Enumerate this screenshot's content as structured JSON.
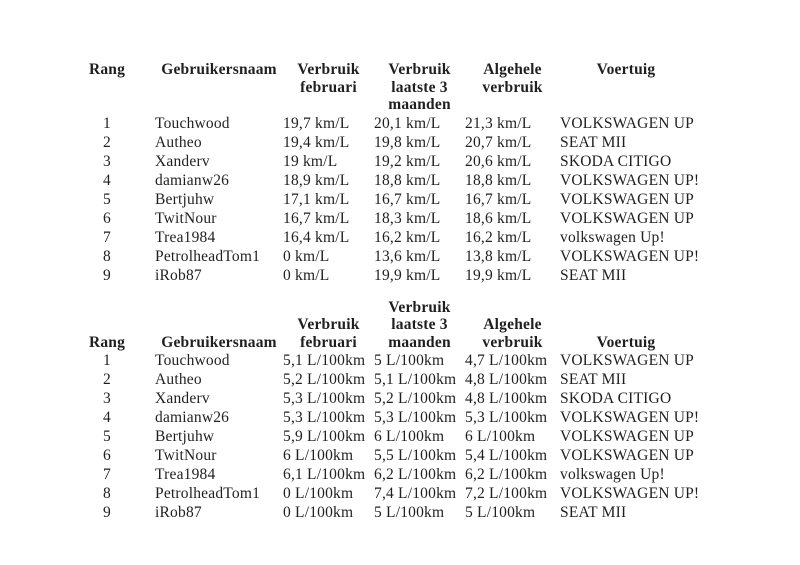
{
  "page": {
    "background_color": "#ffffff",
    "text_color": "#1f1f1f"
  },
  "tables": [
    {
      "name": "consumption-ranking-km-per-l",
      "headers": {
        "rank": "Rang",
        "username": "Gebruikersnaam",
        "february": "Verbruik\nfebruari",
        "last3": "Verbruik\nlaatste 3\nmaanden",
        "overall": "Algehele\nverbruik",
        "vehicle": "Voertuig"
      },
      "rows": [
        {
          "rank": "1",
          "username": "Touchwood",
          "february": "19,7 km/L",
          "last3": "20,1 km/L",
          "overall": "21,3 km/L",
          "vehicle": "VOLKSWAGEN UP"
        },
        {
          "rank": "2",
          "username": "Autheo",
          "february": "19,4 km/L",
          "last3": "19,8 km/L",
          "overall": "20,7 km/L",
          "vehicle": "SEAT MII"
        },
        {
          "rank": "3",
          "username": "Xanderv",
          "february": "19 km/L",
          "last3": "19,2 km/L",
          "overall": "20,6 km/L",
          "vehicle": "SKODA CITIGO"
        },
        {
          "rank": "4",
          "username": "damianw26",
          "february": "18,9 km/L",
          "last3": "18,8 km/L",
          "overall": "18,8 km/L",
          "vehicle": "VOLKSWAGEN UP!"
        },
        {
          "rank": "5",
          "username": "Bertjuhw",
          "february": "17,1 km/L",
          "last3": "16,7 km/L",
          "overall": "16,7 km/L",
          "vehicle": "VOLKSWAGEN UP"
        },
        {
          "rank": "6",
          "username": "TwitNour",
          "february": "16,7 km/L",
          "last3": "18,3 km/L",
          "overall": "18,6 km/L",
          "vehicle": "VOLKSWAGEN UP"
        },
        {
          "rank": "7",
          "username": "Trea1984",
          "february": "16,4 km/L",
          "last3": "16,2 km/L",
          "overall": "16,2 km/L",
          "vehicle": "volkswagen Up!"
        },
        {
          "rank": "8",
          "username": "PetrolheadTom1",
          "february": "0 km/L",
          "last3": "13,6 km/L",
          "overall": "13,8 km/L",
          "vehicle": "VOLKSWAGEN UP!"
        },
        {
          "rank": "9",
          "username": "iRob87",
          "february": "0 km/L",
          "last3": "19,9 km/L",
          "overall": "19,9 km/L",
          "vehicle": "SEAT MII"
        }
      ]
    },
    {
      "name": "consumption-ranking-l-per-100km",
      "headers": {
        "rank": "Rang",
        "username": "Gebruikersnaam",
        "february": "Verbruik\nfebruari",
        "last3": "Verbruik\nlaatste 3\nmaanden",
        "overall": "Algehele\nverbruik",
        "vehicle": "Voertuig"
      },
      "rows": [
        {
          "rank": "1",
          "username": "Touchwood",
          "february": "5,1 L/100km",
          "last3": "5 L/100km",
          "overall": "4,7 L/100km",
          "vehicle": "VOLKSWAGEN UP"
        },
        {
          "rank": "2",
          "username": "Autheo",
          "february": "5,2 L/100km",
          "last3": "5,1 L/100km",
          "overall": "4,8 L/100km",
          "vehicle": "SEAT MII"
        },
        {
          "rank": "3",
          "username": "Xanderv",
          "february": "5,3 L/100km",
          "last3": "5,2 L/100km",
          "overall": "4,8 L/100km",
          "vehicle": "SKODA CITIGO"
        },
        {
          "rank": "4",
          "username": "damianw26",
          "february": "5,3 L/100km",
          "last3": "5,3 L/100km",
          "overall": "5,3 L/100km",
          "vehicle": "VOLKSWAGEN UP!"
        },
        {
          "rank": "5",
          "username": "Bertjuhw",
          "february": "5,9 L/100km",
          "last3": "6 L/100km",
          "overall": "6 L/100km",
          "vehicle": "VOLKSWAGEN UP"
        },
        {
          "rank": "6",
          "username": "TwitNour",
          "february": "6 L/100km",
          "last3": "5,5 L/100km",
          "overall": "5,4 L/100km",
          "vehicle": "VOLKSWAGEN UP"
        },
        {
          "rank": "7",
          "username": "Trea1984",
          "february": "6,1 L/100km",
          "last3": "6,2 L/100km",
          "overall": "6,2 L/100km",
          "vehicle": "volkswagen Up!"
        },
        {
          "rank": "8",
          "username": "PetrolheadTom1",
          "february": "0 L/100km",
          "last3": "7,4 L/100km",
          "overall": "7,2 L/100km",
          "vehicle": "VOLKSWAGEN UP!"
        },
        {
          "rank": "9",
          "username": "iRob87",
          "february": "0 L/100km",
          "last3": "5 L/100km",
          "overall": "5 L/100km",
          "vehicle": "SEAT MII"
        }
      ]
    }
  ]
}
